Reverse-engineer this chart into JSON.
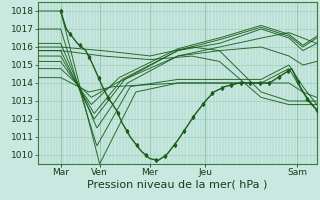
{
  "xlabel": "Pression niveau de la mer( hPa )",
  "bg_color": "#c8e8e0",
  "grid_color": "#98c8b8",
  "line_color": "#1a5c1a",
  "ylim": [
    1009.5,
    1018.5
  ],
  "yticks": [
    1010,
    1011,
    1012,
    1013,
    1014,
    1015,
    1016,
    1017,
    1018
  ],
  "xtick_labels": [
    "Mar",
    "Ven",
    "Mer",
    "Jeu",
    "Sam"
  ],
  "xtick_positions": [
    0.08,
    0.22,
    0.4,
    0.6,
    0.93
  ],
  "xlim": [
    0.0,
    1.0
  ],
  "xlabel_fontsize": 8,
  "tick_fontsize": 6.5,
  "ensemble_lines": [
    {
      "kx": [
        0.08,
        0.22,
        0.35,
        0.5,
        0.65,
        0.8,
        0.9,
        0.95,
        1.0
      ],
      "ky": [
        1018.0,
        1009.5,
        1013.5,
        1014.0,
        1014.0,
        1014.0,
        1014.8,
        1013.5,
        1012.5
      ]
    },
    {
      "kx": [
        0.08,
        0.21,
        0.33,
        0.5,
        0.65,
        0.8,
        0.9,
        0.95,
        1.0
      ],
      "ky": [
        1017.0,
        1010.5,
        1013.8,
        1014.2,
        1014.2,
        1014.2,
        1015.0,
        1013.8,
        1012.8
      ]
    },
    {
      "kx": [
        0.08,
        0.21,
        0.32,
        0.5,
        0.65,
        0.8,
        0.9,
        0.95,
        1.0
      ],
      "ky": [
        1016.2,
        1011.5,
        1014.0,
        1015.5,
        1016.0,
        1016.5,
        1016.8,
        1016.5,
        1016.2
      ]
    },
    {
      "kx": [
        0.08,
        0.2,
        0.31,
        0.5,
        0.65,
        0.8,
        0.9,
        0.95,
        1.0
      ],
      "ky": [
        1015.8,
        1012.0,
        1014.2,
        1015.8,
        1016.2,
        1017.0,
        1016.5,
        1015.8,
        1016.2
      ]
    },
    {
      "kx": [
        0.08,
        0.2,
        0.3,
        0.5,
        0.65,
        0.8,
        0.9,
        0.95,
        1.0
      ],
      "ky": [
        1015.5,
        1012.3,
        1014.2,
        1015.8,
        1016.4,
        1017.1,
        1016.6,
        1016.0,
        1016.5
      ]
    },
    {
      "kx": [
        0.08,
        0.19,
        0.29,
        0.5,
        0.65,
        0.8,
        0.9,
        0.95,
        1.0
      ],
      "ky": [
        1015.2,
        1012.8,
        1014.3,
        1015.9,
        1016.5,
        1017.2,
        1016.7,
        1016.1,
        1016.6
      ]
    },
    {
      "kx": [
        0.08,
        0.19,
        0.28,
        0.5,
        0.65,
        0.8,
        0.9,
        0.95,
        1.0
      ],
      "ky": [
        1014.8,
        1013.2,
        1014.0,
        1015.5,
        1015.8,
        1016.0,
        1015.5,
        1015.0,
        1015.2
      ]
    },
    {
      "kx": [
        0.08,
        0.18,
        0.27,
        0.5,
        0.65,
        0.8,
        0.9,
        0.95,
        1.0
      ],
      "ky": [
        1014.3,
        1013.5,
        1013.8,
        1014.0,
        1014.0,
        1014.0,
        1014.0,
        1013.5,
        1013.2
      ]
    },
    {
      "kx": [
        0.08,
        0.23,
        0.4,
        0.55,
        0.65,
        0.8,
        0.9,
        0.95,
        1.0
      ],
      "ky": [
        1016.0,
        1015.8,
        1015.5,
        1016.0,
        1015.8,
        1013.5,
        1013.0,
        1013.0,
        1013.0
      ]
    },
    {
      "kx": [
        0.08,
        0.23,
        0.4,
        0.55,
        0.65,
        0.8,
        0.9,
        0.95,
        1.0
      ],
      "ky": [
        1015.8,
        1015.5,
        1015.3,
        1015.5,
        1015.2,
        1013.2,
        1012.8,
        1012.8,
        1012.8
      ]
    }
  ],
  "main_kx": [
    0.08,
    0.1,
    0.14,
    0.17,
    0.19,
    0.21,
    0.23,
    0.25,
    0.28,
    0.3,
    0.33,
    0.37,
    0.4,
    0.43,
    0.46,
    0.5,
    0.53,
    0.56,
    0.6,
    0.63,
    0.67,
    0.72,
    0.78,
    0.83,
    0.88,
    0.91,
    0.94,
    0.97,
    1.0
  ],
  "main_ky": [
    1018.0,
    1017.0,
    1016.2,
    1015.8,
    1015.2,
    1014.5,
    1013.8,
    1013.2,
    1012.5,
    1011.8,
    1011.0,
    1010.2,
    1009.8,
    1009.7,
    1010.0,
    1010.8,
    1011.5,
    1012.2,
    1013.0,
    1013.5,
    1013.8,
    1014.0,
    1014.0,
    1014.0,
    1014.5,
    1014.8,
    1013.8,
    1013.0,
    1012.5
  ]
}
